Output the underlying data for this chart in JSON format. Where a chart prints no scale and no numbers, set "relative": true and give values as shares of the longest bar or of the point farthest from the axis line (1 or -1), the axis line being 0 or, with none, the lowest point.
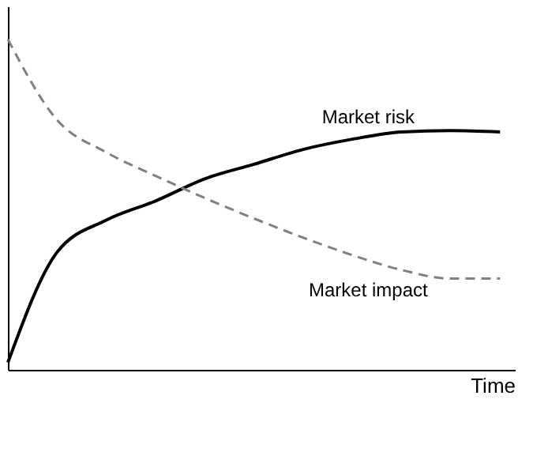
{
  "chart_data": {
    "type": "line",
    "relative": true,
    "xlabel": "Time",
    "categories": [
      null,
      null,
      null,
      null,
      null,
      null,
      null,
      null,
      null,
      null,
      null
    ],
    "series": [
      {
        "name": "Market risk",
        "color": "#000000",
        "line_style": "solid",
        "values": [
          0.022,
          0.356,
          0.453,
          0.511,
          0.578,
          0.622,
          0.667,
          0.698,
          0.72,
          0.724,
          0.72
        ]
      },
      {
        "name": "Market impact",
        "color": "#808080",
        "line_style": "dashed",
        "values": [
          1,
          0.756,
          0.658,
          0.587,
          0.52,
          0.458,
          0.4,
          0.347,
          0.302,
          0.276,
          0.276
        ]
      }
    ],
    "legend": false,
    "grid": false,
    "marker": "none",
    "tick_labels": false
  }
}
